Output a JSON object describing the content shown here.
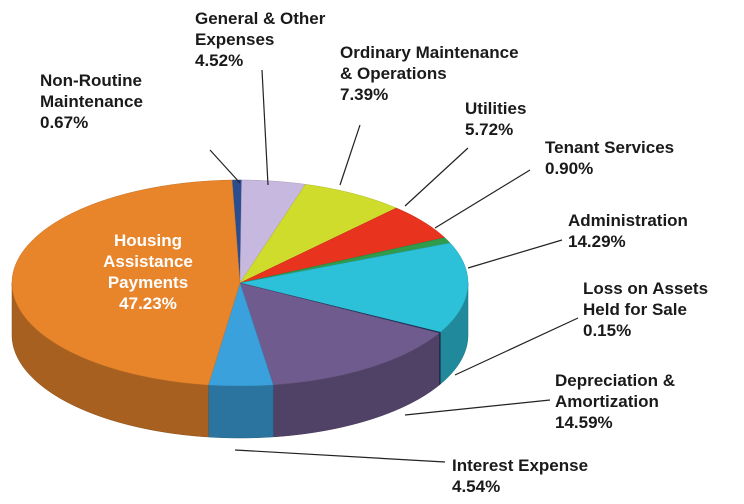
{
  "chart_data": {
    "type": "pie",
    "categories": [
      "Non-Routine Maintenance",
      "General & Other Expenses",
      "Ordinary Maintenance & Operations",
      "Utilities",
      "Tenant Services",
      "Administration",
      "Loss on Assets Held for Sale",
      "Depreciation & Amortization",
      "Interest Expense",
      "Housing Assistance Payments"
    ],
    "values": [
      0.67,
      4.52,
      7.39,
      5.72,
      0.9,
      14.29,
      0.15,
      14.59,
      4.54,
      47.23
    ],
    "value_labels": [
      "0.67%",
      "4.52%",
      "7.39%",
      "5.72%",
      "0.90%",
      "14.29%",
      "0.15%",
      "14.59%",
      "4.54%",
      "47.23%"
    ],
    "colors": [
      "#2a4d8f",
      "#c6b8de",
      "#d0dc2c",
      "#e8331f",
      "#2f9b4b",
      "#2cc0d9",
      "#1d2f5a",
      "#6f5b8d",
      "#3ba1dd",
      "#e8852b"
    ]
  }
}
